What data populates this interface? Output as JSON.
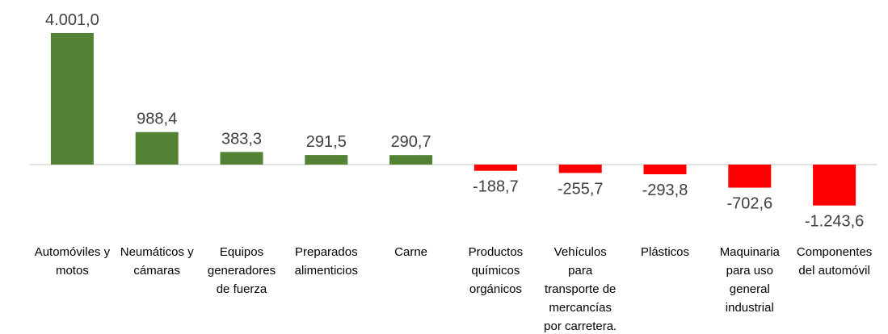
{
  "chart_data": {
    "type": "bar",
    "categories": [
      [
        "Automóviles y",
        "motos"
      ],
      [
        "Neumáticos y",
        "cámaras"
      ],
      [
        "Equipos",
        "generadores",
        "de fuerza"
      ],
      [
        "Preparados",
        "alimenticios"
      ],
      [
        "Carne"
      ],
      [
        "Productos",
        "químicos",
        "orgánicos"
      ],
      [
        "Vehículos",
        "para",
        "transporte de",
        "mercancías",
        "por carretera."
      ],
      [
        "Plásticos"
      ],
      [
        "Maquinaria",
        "para uso",
        "general",
        "industrial"
      ],
      [
        "Componentes",
        "del automóvil"
      ]
    ],
    "values": [
      4001.0,
      988.4,
      383.3,
      291.5,
      290.7,
      -188.7,
      -255.7,
      -293.8,
      -702.6,
      -1243.6
    ],
    "data_labels": [
      "4.001,0",
      "988,4",
      "383,3",
      "291,5",
      "290,7",
      "-188,7",
      "-255,7",
      "-293,8",
      "-702,6",
      "-1.243,6"
    ],
    "ylim": [
      -1300,
      4100
    ],
    "grid": false,
    "legend": "none",
    "colors": {
      "positive": "#548235",
      "negative": "#ff0000",
      "axis": "#d9d9d9",
      "label": "#404040"
    }
  }
}
